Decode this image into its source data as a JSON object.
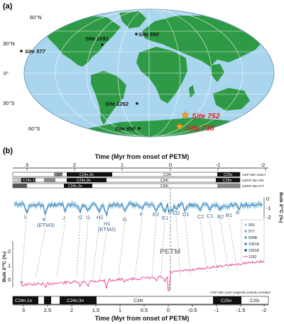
{
  "panel_a": {
    "label": "(a)",
    "lat_labels": [
      "60°N",
      "30°N",
      "0°",
      "30°S",
      "60°S"
    ],
    "sites": [
      {
        "name": "Site 1051",
        "color": "#111111",
        "marker": "dot"
      },
      {
        "name": "Site 550",
        "color": "#111111",
        "marker": "dot"
      },
      {
        "name": "Site 577",
        "color": "#111111",
        "marker": "dot"
      },
      {
        "name": "Site 1262",
        "color": "#111111",
        "marker": "dot"
      },
      {
        "name": "Site 690",
        "color": "#111111",
        "marker": "dot"
      },
      {
        "name": "Site 752",
        "color": "#d81e1e",
        "marker": "star"
      },
      {
        "name": "Site 738",
        "color": "#d81e1e",
        "marker": "star"
      }
    ],
    "colors": {
      "ocean": "#a9d6ee",
      "land": "#2f9a45",
      "grid": "#ffffff"
    }
  },
  "panel_b": {
    "label": "(b)",
    "top_axis_title": "Time (Myr from onset of PETM)",
    "bottom_axis_title": "Time (Myr from onset of PETM)",
    "top_ticks": [
      "3",
      "2",
      "1",
      "0",
      "-1",
      "-2"
    ],
    "bottom_ticks": [
      "3",
      "2.5",
      "2",
      "1.5",
      "1",
      "0.5",
      "0",
      "-0.5",
      "-1",
      "-1.5",
      "-2"
    ],
    "chron_rows": [
      {
        "site": "ODP Site 1051A",
        "labels": [
          "2r?",
          "C24n.3n",
          "C24r",
          "C25n"
        ]
      },
      {
        "site": "DSDP Site 550",
        "labels": [
          "C23r",
          "C24n.1n",
          "C24n.3n",
          "C24r",
          "C25n"
        ]
      },
      {
        "site": "DSDP Site 577",
        "labels": [
          "C24n.3n",
          "C24r"
        ]
      }
    ],
    "bottom_zonation_title": "ODP Site 1262 magnetic polarity zonation",
    "bottom_chrons": [
      "C24n.1n",
      "C24n.3n",
      "C24r",
      "C25n",
      "C25r"
    ],
    "event_labels": [
      "L",
      "K",
      "(ETM3)",
      "J",
      "I2",
      "I1",
      "H2",
      "H1",
      "(ETM2)",
      "G",
      "F",
      "E2",
      "E1",
      "D2",
      "D1",
      "C2",
      "C1",
      "B2",
      "B1",
      "A"
    ],
    "petm_label": "PETM",
    "right_ylabel": "Bulk δ¹³C (‰)",
    "left_ylabel": "Bulk δ¹³C (‰)",
    "right_ticks": [
      "0",
      "-1",
      "-2"
    ],
    "left_ticks": [
      "2",
      "1",
      "0"
    ],
    "legend": [
      {
        "name": "550",
        "color": "#9ecae1"
      },
      {
        "name": "577",
        "color": "#6baed6"
      },
      {
        "name": "690B",
        "color": "#4fa3c7"
      },
      {
        "name": "1051A",
        "color": "#3182bd"
      },
      {
        "name": "1051B",
        "color": "#08519c"
      },
      {
        "name": "1262",
        "color": "#e5398b"
      }
    ],
    "question_mark": "?"
  }
}
